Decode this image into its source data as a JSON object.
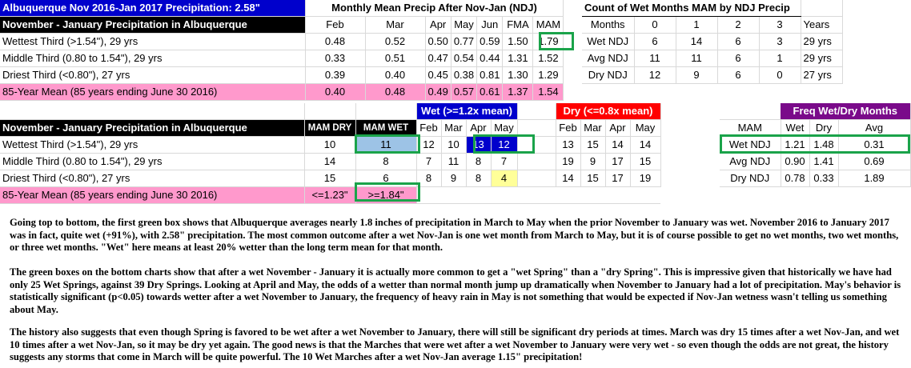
{
  "top_left": {
    "title": "Albuquerque Nov 2016-Jan 2017 Precipitation: 2.58\"",
    "header": "November - January Precipitation in Albuquerque",
    "rows": [
      {
        "label": "Wettest Third (>1.54\"), 29 yrs"
      },
      {
        "label": "Middle Third (0.80 to 1.54\"), 29 yrs"
      },
      {
        "label": "Driest Third (<0.80\"), 27 yrs"
      },
      {
        "label": "85-Year Mean (85 years ending June 30 2016)"
      }
    ]
  },
  "monthly_mean": {
    "title": "Monthly Mean Precip After Nov-Jan (NDJ)",
    "columns": [
      "Feb",
      "Mar",
      "Apr",
      "May",
      "Jun",
      "FMA",
      "MAM"
    ],
    "rows": [
      [
        "0.48",
        "0.52",
        "0.50",
        "0.77",
        "0.59",
        "1.50",
        "1.79"
      ],
      [
        "0.33",
        "0.51",
        "0.47",
        "0.54",
        "0.44",
        "1.31",
        "1.52"
      ],
      [
        "0.39",
        "0.40",
        "0.45",
        "0.38",
        "0.81",
        "1.30",
        "1.29"
      ],
      [
        "0.40",
        "0.48",
        "0.49",
        "0.57",
        "0.61",
        "1.37",
        "1.54"
      ]
    ]
  },
  "wet_count": {
    "title": "Count of Wet Months MAM by NDJ Precip",
    "columns": [
      "Months",
      "0",
      "1",
      "2",
      "3",
      "Years"
    ],
    "rows": [
      [
        "Wet NDJ",
        "6",
        "14",
        "6",
        "3",
        "29 yrs"
      ],
      [
        "Avg NDJ",
        "11",
        "11",
        "6",
        "1",
        "29 yrs"
      ],
      [
        "Dry NDJ",
        "12",
        "9",
        "6",
        "0",
        "27 yrs"
      ]
    ]
  },
  "bottom": {
    "wet_header": "Wet (>=1.2x mean)",
    "dry_header": "Dry (<=0.8x mean)",
    "title": "November - January Precipitation in Albuquerque",
    "mam_dry": "MAM DRY",
    "mam_wet": "MAM WET",
    "wet_months": [
      "Feb",
      "Mar",
      "Apr",
      "May"
    ],
    "dry_months": [
      "Feb",
      "Mar",
      "Apr",
      "May"
    ],
    "rows": [
      {
        "label": "Wettest Third (>1.54\"), 29 yrs",
        "mam_dry": "10",
        "mam_wet": "11",
        "wet": [
          "12",
          "10",
          "13",
          "12"
        ],
        "dry": [
          "13",
          "15",
          "14",
          "14"
        ]
      },
      {
        "label": "Middle Third (0.80 to 1.54\"), 29 yrs",
        "mam_dry": "14",
        "mam_wet": "8",
        "wet": [
          "7",
          "11",
          "8",
          "7"
        ],
        "dry": [
          "19",
          "9",
          "17",
          "15"
        ]
      },
      {
        "label": "Driest Third (<0.80\"), 27 yrs",
        "mam_dry": "15",
        "mam_wet": "6",
        "wet": [
          "8",
          "9",
          "8",
          "4"
        ],
        "dry": [
          "14",
          "15",
          "17",
          "19"
        ]
      }
    ],
    "mean_label": "85-Year Mean (85 years ending June 30 2016)",
    "mean_dry": "<=1.23\"",
    "mean_wet": ">=1.84\""
  },
  "freq": {
    "title": "Freq Wet/Dry Months",
    "columns": [
      "MAM",
      "Wet",
      "Dry",
      "Avg"
    ],
    "rows": [
      [
        "Wet NDJ",
        "1.21",
        "1.48",
        "0.31"
      ],
      [
        "Avg NDJ",
        "0.90",
        "1.41",
        "0.69"
      ],
      [
        "Dry NDJ",
        "0.78",
        "0.33",
        "1.89"
      ]
    ]
  },
  "paragraphs": [
    "Going top to bottom, the first green box shows that Albuquerque averages nearly 1.8 inches of precipitation in March to May when the prior November to January was wet. November 2016 to January 2017 was in fact, quite wet (+91%), with 2.58\" precipitation. The most common outcome after a wet Nov-Jan is   one wet   month from March to May, but it is of course possible to get no wet months, two wet months, or three wet months. \"Wet\" here means at least 20% wetter than the long term mean for that month.",
    "The green boxes on the bottom charts show that after a wet November - January it is actually more common to get a \"wet Spring\" than a \"dry Spring\". This is impressive given that historically we have had only 25 Wet Springs, against 39 Dry Springs. Looking at April and May, the odds of a wetter than normal month jump up dramatically when November to January had a lot of precipitation. May's behavior is statistically significant (p<0.05) towards wetter after a wet November to January, the frequency of heavy rain in May is not something that would be expected if Nov-Jan wetness wasn't telling us something about May.",
    "The history also suggests that even though Spring is favored to be wet after a wet November to January, there will still be significant dry periods at times. March was dry 15 times after a wet Nov-Jan, and wet 10 times after a wet Nov-Jan, so it may be dry yet again. The good news is that the Marches that were wet after a wet November to January were very wet - so even though the odds are not great, the history suggests any storms that come in March will be quite powerful.  The 10 Wet Marches after a wet Nov-Jan average 1.15\" precipitation!"
  ]
}
